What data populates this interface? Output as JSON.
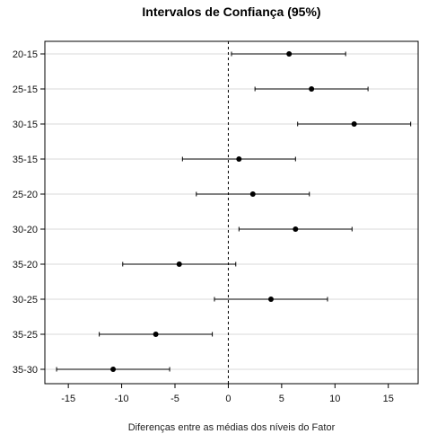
{
  "chart_data": {
    "type": "scatter",
    "title": "Intervalos de Confiança (95%)",
    "xlabel": "Diferenças entre as médias dos níveis do Fator",
    "ylabel": "",
    "xlim": [
      -17.2,
      17.8
    ],
    "xticks": [
      -15,
      -10,
      -5,
      0,
      5,
      10,
      15
    ],
    "reference_line": {
      "x": 0,
      "style": "dashed"
    },
    "grid": "horizontal",
    "categories": [
      "20-15",
      "25-15",
      "30-15",
      "35-15",
      "25-20",
      "30-20",
      "35-20",
      "30-25",
      "35-25",
      "35-30"
    ],
    "series": [
      {
        "estimate": [
          5.7,
          7.8,
          11.8,
          1.0,
          2.3,
          6.3,
          -4.6,
          4.0,
          -6.8,
          -10.8
        ],
        "lower": [
          0.3,
          2.5,
          6.5,
          -4.3,
          -3.0,
          1.0,
          -9.9,
          -1.3,
          -12.1,
          -16.1
        ],
        "upper": [
          11.0,
          13.1,
          17.1,
          6.3,
          7.6,
          11.6,
          0.7,
          9.3,
          -1.5,
          -5.5
        ]
      }
    ],
    "colors": {
      "point": "#000000",
      "interval": "#000000",
      "grid": "#d9d9d9",
      "frame": "#000000",
      "reference": "#000000"
    }
  }
}
